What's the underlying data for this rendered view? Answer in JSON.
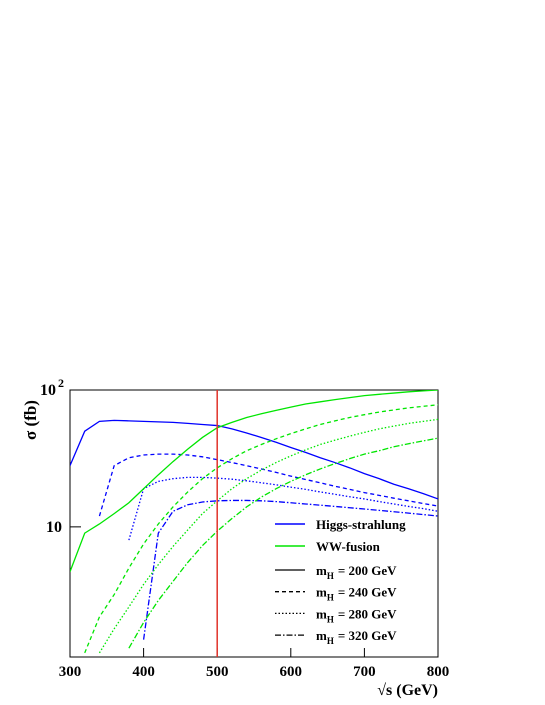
{
  "chart_data": {
    "type": "line",
    "xlabel": "√s (GeV)",
    "ylabel": "σ (fb)",
    "xlim": [
      300,
      800
    ],
    "ylim": [
      1.12,
      100
    ],
    "log_y": true,
    "xticks": [
      300,
      400,
      500,
      600,
      700,
      800
    ],
    "yticks": [
      10,
      {
        "value": 100,
        "label": "10",
        "exponent": "2"
      }
    ],
    "vline": {
      "x": 500,
      "color": "#e0332a"
    },
    "x": [
      300,
      320,
      340,
      360,
      380,
      400,
      420,
      440,
      460,
      480,
      500,
      520,
      540,
      560,
      580,
      600,
      620,
      640,
      660,
      680,
      700,
      720,
      740,
      760,
      780,
      800
    ],
    "mass_styles": [
      {
        "symbol": "m",
        "subscript": "H",
        "text": "= 200 GeV",
        "dash": "none"
      },
      {
        "symbol": "m",
        "subscript": "H",
        "text": "= 240 GeV",
        "dash": "4,3"
      },
      {
        "symbol": "m",
        "subscript": "H",
        "text": "= 280 GeV",
        "dash": "1.5,2"
      },
      {
        "symbol": "m",
        "subscript": "H",
        "text": "= 320 GeV",
        "dash": "6,2,1.5,2"
      }
    ],
    "series": [
      {
        "name": "Higgs-strahlung",
        "color": "#0000ff",
        "curves": [
          {
            "values": [
              28,
              50,
              59,
              60,
              59.5,
              59,
              58.5,
              58,
              57,
              56,
              55,
              52,
              48.5,
              45,
              41.5,
              38,
              35,
              32,
              29.5,
              27,
              24.5,
              22.5,
              20.5,
              19,
              17.5,
              16
            ]
          },
          {
            "values": [
              null,
              null,
              12,
              28,
              32,
              33.5,
              34,
              34,
              33.5,
              32.5,
              31,
              29.5,
              28,
              26.5,
              25,
              23.5,
              22.2,
              21,
              19.8,
              18.8,
              17.8,
              17,
              16.2,
              15.5,
              14.8,
              14.2
            ]
          },
          {
            "values": [
              null,
              null,
              null,
              null,
              8,
              19,
              21.5,
              22.5,
              23,
              23,
              22.7,
              22.3,
              21.7,
              21,
              20.3,
              19.5,
              18.8,
              18,
              17.3,
              16.6,
              16,
              15.3,
              14.7,
              14.1,
              13.6,
              13
            ]
          },
          {
            "values": [
              null,
              null,
              null,
              null,
              null,
              1.5,
              9,
              13,
              14.5,
              15.2,
              15.5,
              15.6,
              15.6,
              15.5,
              15.3,
              15,
              14.7,
              14.4,
              14.1,
              13.8,
              13.5,
              13.2,
              12.9,
              12.6,
              12.3,
              12
            ]
          }
        ]
      },
      {
        "name": "WW-fusion",
        "color": "#00e600",
        "curves": [
          {
            "values": [
              4.7,
              9,
              10.5,
              12.5,
              15,
              19,
              24,
              30,
              37,
              45,
              53,
              58,
              63,
              67,
              71,
              75,
              79,
              82,
              85,
              88,
              91,
              93,
              95,
              97,
              98.5,
              100
            ]
          },
          {
            "values": [
              null,
              1.2,
              2.2,
              3.2,
              5,
              7.5,
              10.5,
              14,
              18,
              22.5,
              27,
              31.5,
              36,
              40,
              44,
              48,
              52,
              56,
              59.5,
              63,
              66,
              69,
              71.5,
              74,
              76,
              78
            ]
          },
          {
            "values": [
              null,
              null,
              1.2,
              1.8,
              2.6,
              3.8,
              5.3,
              7.2,
              9.5,
              12.5,
              15.5,
              19,
              22.5,
              26,
              29.5,
              33,
              36.5,
              40,
              43,
              46,
              49,
              52,
              54.5,
              57,
              59,
              61
            ]
          },
          {
            "values": [
              null,
              null,
              null,
              null,
              1.3,
              2,
              2.9,
              4,
              5.5,
              7.3,
              9.3,
              11.5,
              14,
              16.5,
              19,
              21.5,
              24,
              26.5,
              29,
              31.5,
              34,
              36,
              38.5,
              40.5,
              42.5,
              44.5
            ]
          }
        ]
      }
    ]
  }
}
